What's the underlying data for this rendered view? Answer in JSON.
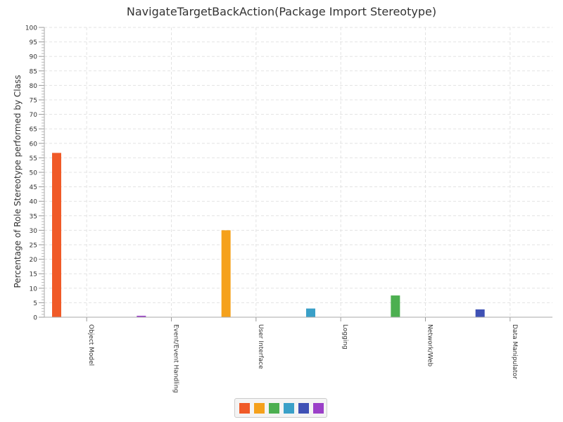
{
  "chart_data": {
    "type": "bar",
    "title": "NavigateTargetBackAction(Package Import Stereotype)",
    "xlabel": "",
    "ylabel": "Percentage of Role Stereotype performed by Class",
    "ylim": [
      0,
      100
    ],
    "y_ticks": [
      0,
      5,
      10,
      15,
      20,
      25,
      30,
      35,
      40,
      45,
      50,
      55,
      60,
      65,
      70,
      75,
      80,
      85,
      90,
      95,
      100
    ],
    "categories": [
      "Object Model",
      "Event/Event Handling",
      "User Interface",
      "Logging",
      "Network/Web",
      "Data Manipulator"
    ],
    "values": [
      56.7,
      0.5,
      30,
      3,
      7.5,
      2.7
    ],
    "colors": [
      "#f05a28",
      "#9b40c8",
      "#f5a11c",
      "#3aa0c8",
      "#4caf50",
      "#3f51b5"
    ],
    "legend_colors": [
      "#f05a28",
      "#f5a11c",
      "#4caf50",
      "#3aa0c8",
      "#3f51b5",
      "#9b40c8"
    ],
    "grid": true,
    "legend_position": "bottom-center"
  }
}
